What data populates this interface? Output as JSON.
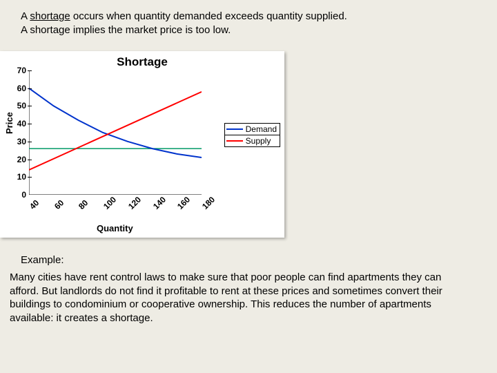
{
  "intro": {
    "line1a": "A ",
    "keyword": "shortage",
    "line1b": " occurs when quantity demanded exceeds quantity supplied.",
    "line2": "A shortage implies the market price is too low."
  },
  "chart": {
    "type": "line",
    "title": "Shortage",
    "ylabel": "Price",
    "xlabel": "Quantity",
    "ylim": [
      0,
      70
    ],
    "yticks": [
      0,
      10,
      20,
      30,
      40,
      50,
      60,
      70
    ],
    "xlim": [
      40,
      180
    ],
    "xticks": [
      40,
      60,
      80,
      100,
      120,
      140,
      160,
      180
    ],
    "background_color": "#ffffff",
    "axis_color": "#000000",
    "title_fontsize": 17,
    "label_fontsize": 13,
    "tick_fontsize": 12,
    "line_width": 2,
    "series": {
      "demand": {
        "label": "Demand",
        "color": "#0033cc",
        "points": [
          [
            40,
            60
          ],
          [
            60,
            50
          ],
          [
            80,
            42
          ],
          [
            100,
            35
          ],
          [
            120,
            30
          ],
          [
            140,
            26
          ],
          [
            160,
            23
          ],
          [
            180,
            21
          ]
        ]
      },
      "supply": {
        "label": "Supply",
        "color": "#ff0000",
        "points": [
          [
            40,
            14
          ],
          [
            180,
            58
          ]
        ]
      },
      "price_line": {
        "label": "",
        "color": "#009966",
        "points": [
          [
            40,
            26
          ],
          [
            180,
            26
          ]
        ]
      }
    }
  },
  "example": {
    "heading": "Example:",
    "body": "Many cities have rent control laws to make sure that poor people can find apartments they can afford. But landlords do not find it profitable to rent at these prices and sometimes convert their buildings to condominium or cooperative ownership. This reduces the number of apartments available: it creates a shortage."
  }
}
